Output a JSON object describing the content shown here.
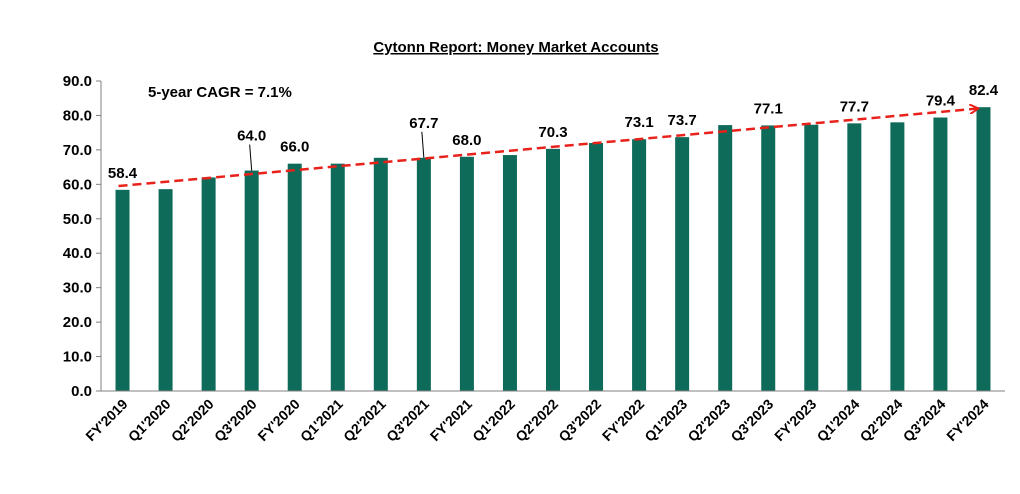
{
  "chart_data": {
    "type": "bar",
    "title": "Cytonn Report: Money Market Accounts",
    "xlabel": "",
    "ylabel": "",
    "ylim": [
      0,
      90
    ],
    "yticks": [
      "0.0",
      "10.0",
      "20.0",
      "30.0",
      "40.0",
      "50.0",
      "60.0",
      "70.0",
      "80.0",
      "90.0"
    ],
    "grid": false,
    "legend": "none",
    "bar_color": "#0e6b5a",
    "trend_color": "#e8211b",
    "categories": [
      "FY'2019",
      "Q1'2020",
      "Q2'2020",
      "Q3'2020",
      "FY'2020",
      "Q1'2021",
      "Q2'2021",
      "Q3'2021",
      "FY'2021",
      "Q1'2022",
      "Q2'2022",
      "Q3'2022",
      "FY'2022",
      "Q1'2023",
      "Q2'2023",
      "Q3'2023",
      "FY'2023",
      "Q1'2024",
      "Q2'2024",
      "Q3'2024",
      "FY'2024"
    ],
    "values": [
      58.4,
      58.6,
      62.0,
      64.0,
      66.0,
      66.0,
      67.7,
      67.7,
      68.0,
      68.5,
      70.3,
      72.0,
      73.1,
      73.7,
      77.2,
      77.1,
      77.3,
      77.7,
      78.0,
      79.4,
      82.4
    ],
    "data_labels": [
      {
        "index": 0,
        "text": "58.4"
      },
      {
        "index": 3,
        "text": "64.0"
      },
      {
        "index": 4,
        "text": "66.0"
      },
      {
        "index": 7,
        "text": "67.7"
      },
      {
        "index": 8,
        "text": "68.0"
      },
      {
        "index": 10,
        "text": "70.3"
      },
      {
        "index": 12,
        "text": "73.1"
      },
      {
        "index": 13,
        "text": "73.7"
      },
      {
        "index": 15,
        "text": "77.1"
      },
      {
        "index": 17,
        "text": "77.7"
      },
      {
        "index": 19,
        "text": "79.4"
      },
      {
        "index": 20,
        "text": "82.4"
      }
    ],
    "annotations": [
      {
        "text": "5-year CAGR = 7.1%"
      }
    ],
    "trendline": {
      "from_index": 0,
      "to_index": 20,
      "y_start": 59.5,
      "y_end": 82.0
    }
  }
}
